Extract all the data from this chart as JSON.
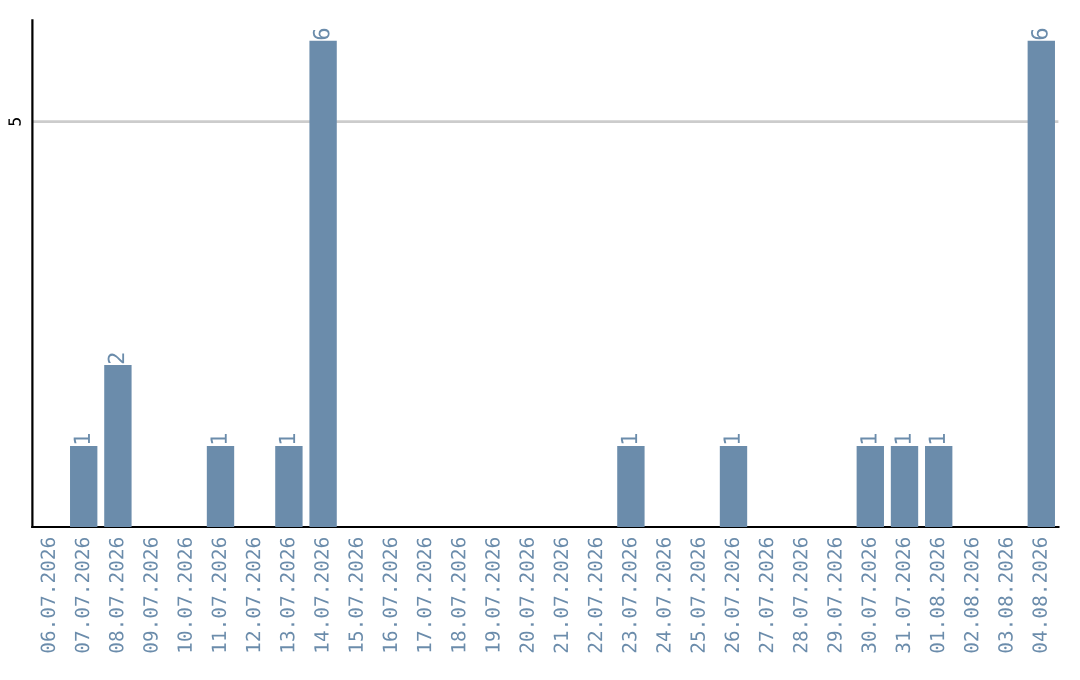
{
  "chart_data": {
    "type": "bar",
    "categories": [
      "06.07.2026",
      "07.07.2026",
      "08.07.2026",
      "09.07.2026",
      "10.07.2026",
      "11.07.2026",
      "12.07.2026",
      "13.07.2026",
      "14.07.2026",
      "15.07.2026",
      "16.07.2026",
      "17.07.2026",
      "18.07.2026",
      "19.07.2026",
      "20.07.2026",
      "21.07.2026",
      "22.07.2026",
      "23.07.2026",
      "24.07.2026",
      "25.07.2026",
      "26.07.2026",
      "27.07.2026",
      "28.07.2026",
      "29.07.2026",
      "30.07.2026",
      "31.07.2026",
      "01.08.2026",
      "02.08.2026",
      "03.08.2026",
      "04.08.2026"
    ],
    "values": [
      0,
      1,
      2,
      0,
      0,
      1,
      0,
      1,
      6,
      0,
      0,
      0,
      0,
      0,
      0,
      0,
      0,
      1,
      0,
      0,
      1,
      0,
      0,
      0,
      1,
      1,
      1,
      0,
      0,
      6
    ],
    "value_labels": [
      null,
      "1",
      "2",
      null,
      null,
      "1",
      null,
      "1",
      "6",
      null,
      null,
      null,
      null,
      null,
      null,
      null,
      null,
      "1",
      null,
      null,
      "1",
      null,
      null,
      null,
      "1",
      "1",
      "1",
      null,
      null,
      "6"
    ],
    "color": "#6b8cab",
    "ylim": [
      0,
      6.25
    ],
    "yticks": [
      5
    ],
    "grid": "y"
  }
}
